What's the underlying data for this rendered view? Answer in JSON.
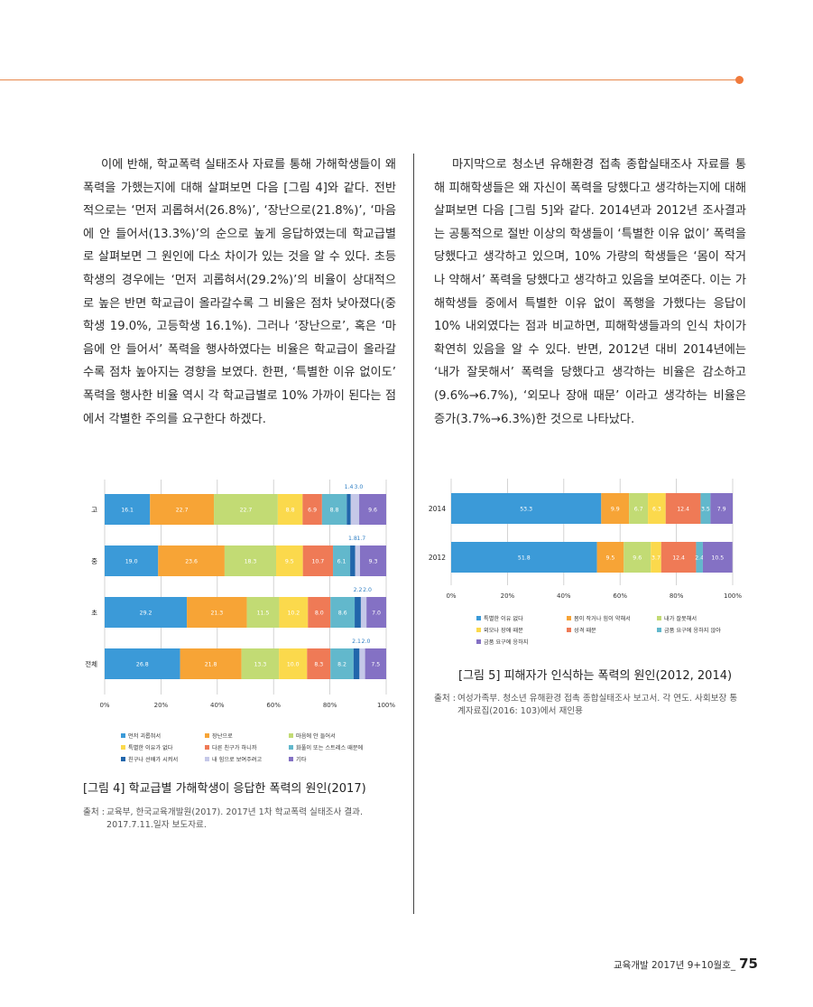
{
  "left_column": {
    "paragraph": "이에 반해, 학교폭력 실태조사 자료를 통해 가해학생들이 왜 폭력을 가했는지에 대해 살펴보면 다음 [그림 4]와 같다. 전반적으로는 ‘먼저 괴롭혀서(26.8%)’, ‘장난으로(21.8%)’, ‘마음에 안 들어서(13.3%)’의 순으로 높게 응답하였는데 학교급별로 살펴보면 그 원인에 다소 차이가 있는 것을 알 수 있다. 초등학생의 경우에는 ‘먼저 괴롭혀서(29.2%)’의 비율이 상대적으로 높은 반면 학교급이 올라갈수록 그 비율은 점차 낮아졌다(중학생 19.0%, 고등학생 16.1%). 그러나 ‘장난으로’, 혹은 ‘마음에 안 들어서’ 폭력을 행사하였다는 비율은 학교급이 올라갈수록 점차 높아지는 경향을 보였다. 한편, ‘특별한 이유 없이도’ 폭력을 행사한 비율 역시 각 학교급별로 10% 가까이 된다는 점에서 각별한 주의를 요구한다 하겠다."
  },
  "right_column": {
    "paragraph": "마지막으로 청소년 유해환경 접촉 종합실태조사 자료를 통해 피해학생들은 왜 자신이 폭력을 당했다고 생각하는지에 대해 살펴보면 다음 [그림 5]와 같다. 2014년과 2012년 조사결과는 공통적으로 절반 이상의 학생들이 ‘특별한 이유 없이’ 폭력을 당했다고 생각하고 있으며, 10% 가량의 학생들은 ‘몸이 작거나 약해서’ 폭력을 당했다고 생각하고 있음을 보여준다. 이는 가해학생들 중에서 특별한 이유 없이 폭행을 가했다는 응답이 10% 내외였다는 점과 비교하면, 피해학생들과의 인식 차이가 확연히 있음을 알 수 있다. 반면, 2012년 대비 2014년에는 ‘내가 잘못해서’ 폭력을 당했다고 생각하는 비율은 감소하고(9.6%→6.7%), ‘외모나 장애 때문’ 이라고 생각하는 비율은 증가(3.7%→6.3%)한 것으로 나타났다."
  },
  "figure4": {
    "caption": "[그림 4] 학교급별 가해학생이 응답한 폭력의 원인(2017)",
    "source_label": "출처 :",
    "source_text": "교육부, 한국교육개발원(2017). 2017년 1차 학교폭력 실태조사 결과. 2017.7.11.일자 보도자료."
  },
  "figure5": {
    "caption": "[그림 5] 피해자가 인식하는 폭력의 원인(2012, 2014)",
    "source_label": "출처 :",
    "source_text": "여성가족부. 청소년 유해환경 접촉 종합실태조사 보고서. 각 연도. 사회보장 통계자료집(2016: 103)에서 재인용"
  },
  "footer": {
    "text": "교육개발 2017년 9+10월호_",
    "page": "75"
  },
  "chart_data": [
    {
      "type": "bar",
      "orientation": "horizontal",
      "stacked": true,
      "categories": [
        "고",
        "중",
        "초",
        "전체"
      ],
      "xlim": [
        0,
        100
      ],
      "xticks": [
        "0%",
        "20%",
        "40%",
        "60%",
        "80%",
        "100%"
      ],
      "grid": true,
      "legend_position": "bottom",
      "series": [
        {
          "name": "먼저 괴롭혀서",
          "color": "#3b9ad8",
          "values": [
            16.1,
            19.0,
            29.2,
            26.8
          ]
        },
        {
          "name": "장난으로",
          "color": "#f7a436",
          "values": [
            22.7,
            23.6,
            21.3,
            21.8
          ]
        },
        {
          "name": "마음에 안 들어서",
          "color": "#c2db74",
          "values": [
            22.7,
            18.3,
            11.5,
            13.3
          ]
        },
        {
          "name": "특별한 이유가 없다",
          "color": "#fbd94c",
          "values": [
            8.8,
            9.5,
            10.2,
            10.0
          ]
        },
        {
          "name": "다른 친구가 하니까",
          "color": "#ef7a56",
          "values": [
            6.9,
            10.7,
            8.0,
            8.3
          ]
        },
        {
          "name": "화풀이 또는 스트레스 때문에",
          "color": "#62b8cc",
          "values": [
            8.8,
            6.1,
            8.6,
            8.2
          ]
        },
        {
          "name": "친구나 선배가 시켜서",
          "color": "#2166ab",
          "values": [
            1.4,
            1.8,
            2.2,
            2.1
          ]
        },
        {
          "name": "내 힘으로 보여주려고",
          "color": "#c5c8e8",
          "values": [
            3.0,
            1.7,
            2.0,
            2.0
          ]
        },
        {
          "name": "기타",
          "color": "#8471c4",
          "values": [
            9.6,
            9.3,
            7.0,
            7.5
          ]
        }
      ]
    },
    {
      "type": "bar",
      "orientation": "horizontal",
      "stacked": true,
      "categories": [
        "2014",
        "2012"
      ],
      "xlim": [
        0,
        100
      ],
      "xticks": [
        "0%",
        "20%",
        "40%",
        "60%",
        "80%",
        "100%"
      ],
      "grid": true,
      "legend_position": "bottom",
      "series": [
        {
          "name": "특별한 이유 없다",
          "color": "#3b9ad8",
          "values": [
            53.3,
            51.8
          ]
        },
        {
          "name": "몸이 작거나 힘이 약해서",
          "color": "#f7a436",
          "values": [
            9.9,
            9.5
          ]
        },
        {
          "name": "내가 잘못해서",
          "color": "#c2db74",
          "values": [
            6.7,
            9.6
          ]
        },
        {
          "name": "외모나 장애 때문",
          "color": "#fbd94c",
          "values": [
            6.3,
            3.7
          ]
        },
        {
          "name": "성격 때문",
          "color": "#ef7a56",
          "values": [
            12.4,
            12.4
          ]
        },
        {
          "name": "금품 요구에 응하지 않아",
          "color": "#62b8cc",
          "values": [
            3.5,
            2.4
          ]
        },
        {
          "name": "금품 요구에 응하지",
          "color": "#8471c4",
          "values": [
            7.9,
            10.5
          ]
        }
      ]
    }
  ]
}
